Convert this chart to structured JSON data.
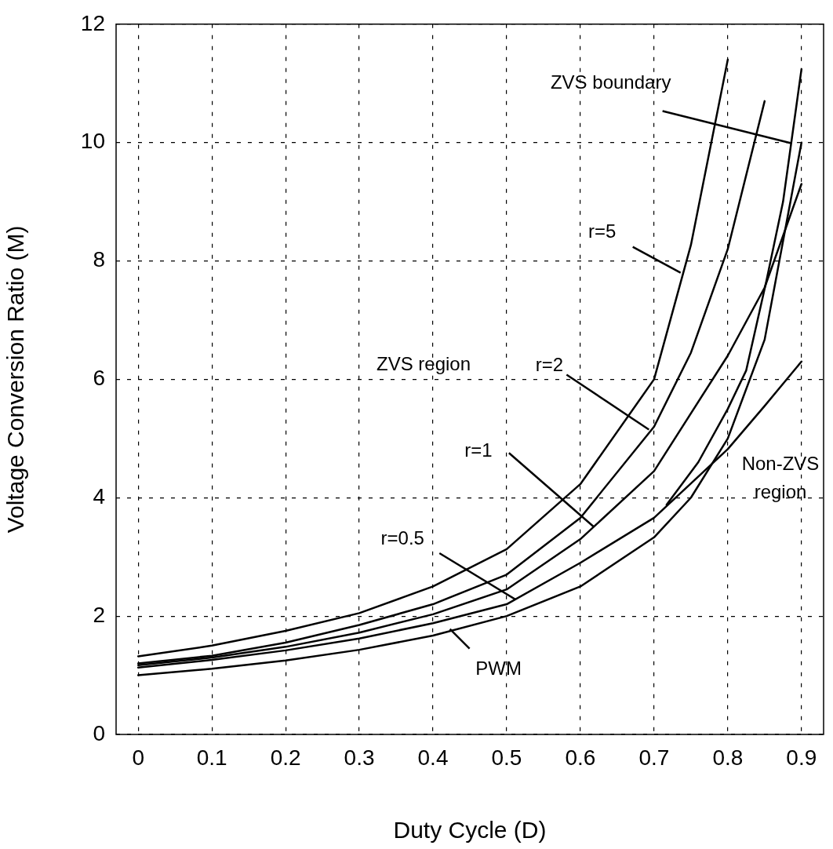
{
  "chart_data": {
    "type": "line",
    "xlabel": "Duty Cycle (D)",
    "ylabel": "Voltage Conversion Ratio (M)",
    "xlim": [
      -0.03,
      0.93
    ],
    "ylim": [
      0,
      12
    ],
    "xticks": [
      0,
      0.1,
      0.2,
      0.3,
      0.4,
      0.5,
      0.6,
      0.7,
      0.8,
      0.9
    ],
    "yticks": [
      0,
      2,
      4,
      6,
      8,
      10,
      12
    ],
    "grid": true,
    "legend": false,
    "marker": "none",
    "line_style": "solid",
    "series": [
      {
        "color": "#000000",
        "x": [
          0,
          0.1,
          0.2,
          0.3,
          0.4,
          0.5,
          0.6,
          0.7,
          0.75,
          0.8
        ],
        "values": [
          1.32,
          1.5,
          1.75,
          2.05,
          2.5,
          3.13,
          4.23,
          6.0,
          8.27,
          11.4
        ]
      },
      {
        "color": "#000000",
        "x": [
          0,
          0.1,
          0.2,
          0.3,
          0.4,
          0.5,
          0.6,
          0.7,
          0.75,
          0.8,
          0.85
        ],
        "values": [
          1.2,
          1.33,
          1.55,
          1.85,
          2.2,
          2.7,
          3.66,
          5.2,
          6.45,
          8.2,
          10.7
        ]
      },
      {
        "color": "#000000",
        "x": [
          0,
          0.1,
          0.2,
          0.3,
          0.4,
          0.5,
          0.6,
          0.7,
          0.8,
          0.85,
          0.9
        ],
        "values": [
          1.17,
          1.3,
          1.48,
          1.72,
          2.03,
          2.45,
          3.3,
          4.45,
          6.4,
          7.55,
          9.3
        ]
      },
      {
        "color": "#000000",
        "x": [
          0,
          0.1,
          0.2,
          0.3,
          0.4,
          0.5,
          0.6,
          0.7,
          0.8,
          0.85,
          0.9
        ],
        "values": [
          1.13,
          1.26,
          1.42,
          1.62,
          1.88,
          2.2,
          2.9,
          3.66,
          4.82,
          5.55,
          6.3
        ]
      },
      {
        "color": "#000000",
        "x": [
          0,
          0.1,
          0.2,
          0.3,
          0.4,
          0.5,
          0.6,
          0.7,
          0.75,
          0.8,
          0.85,
          0.9
        ],
        "values": [
          1,
          1.11,
          1.25,
          1.43,
          1.67,
          2,
          2.5,
          3.33,
          4,
          5,
          6.67,
          10
        ]
      },
      {
        "color": "#000000",
        "x": [
          0.717,
          0.76,
          0.8,
          0.825,
          0.852,
          0.875,
          0.9
        ],
        "values": [
          3.88,
          4.6,
          5.5,
          6.15,
          7.64,
          9.0,
          11.24
        ]
      }
    ],
    "annotations": [
      {
        "text": "ZVS boundary",
        "x": 0.886,
        "y": 9.99
      },
      {
        "text": "r=5",
        "x": 0.736,
        "y": 7.8
      },
      {
        "text": "r=2",
        "x": 0.693,
        "y": 5.15
      },
      {
        "text": "r=1",
        "x": 0.618,
        "y": 3.51
      },
      {
        "text": "r=0.5",
        "x": 0.512,
        "y": 2.28
      },
      {
        "text": "PWM",
        "x": 0.423,
        "y": 1.78
      },
      "ZVS region",
      "Non-ZVS region"
    ]
  }
}
